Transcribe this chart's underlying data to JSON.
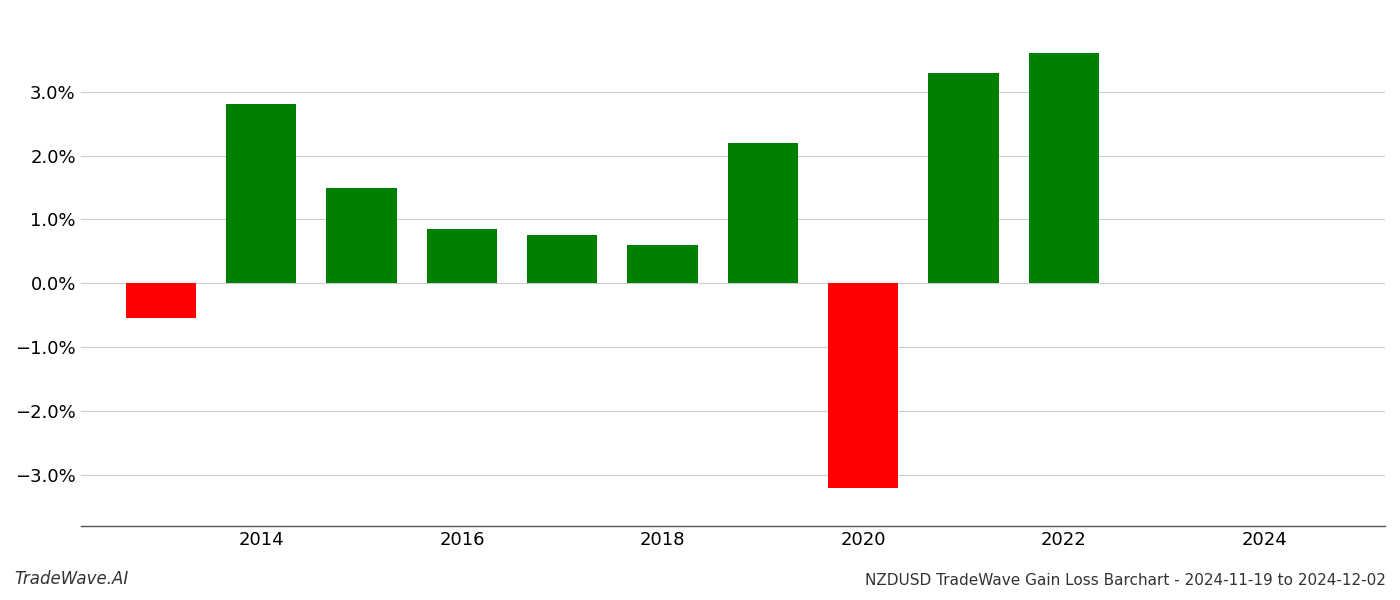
{
  "years": [
    2013,
    2014,
    2015,
    2016,
    2017,
    2018,
    2019,
    2020,
    2021,
    2022,
    2023
  ],
  "values": [
    -0.0055,
    0.028,
    0.015,
    0.0085,
    0.0075,
    0.006,
    0.022,
    -0.032,
    0.033,
    0.036,
    0.0
  ],
  "bar_colors": [
    "#ff0000",
    "#008000",
    "#008000",
    "#008000",
    "#008000",
    "#008000",
    "#008000",
    "#ff0000",
    "#008000",
    "#008000",
    "#008000"
  ],
  "title": "NZDUSD TradeWave Gain Loss Barchart - 2024-11-19 to 2024-12-02",
  "watermark": "TradeWave.AI",
  "ylim": [
    -0.038,
    0.042
  ],
  "ytick_values": [
    -0.03,
    -0.02,
    -0.01,
    0.0,
    0.01,
    0.02,
    0.03
  ],
  "xlim": [
    2012.2,
    2025.2
  ],
  "xtick_positions": [
    2014,
    2016,
    2018,
    2020,
    2022,
    2024
  ],
  "bar_width": 0.7,
  "background_color": "#ffffff",
  "grid_color": "#cccccc",
  "title_fontsize": 11,
  "watermark_fontsize": 12,
  "tick_labelsize": 13
}
